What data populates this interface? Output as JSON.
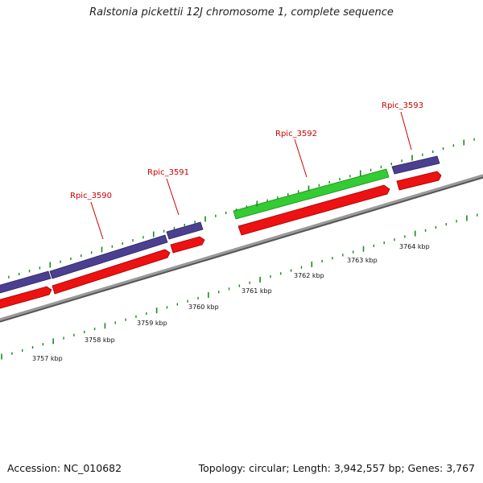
{
  "title": "Ralstonia pickettii 12J chromosome 1, complete sequence",
  "footer": {
    "accession": "Accession: NC_010682",
    "summary": "Topology: circular; Length: 3,942,557 bp; Genes: 3,767"
  },
  "colors": {
    "backbone": "#8a8a8a",
    "gene_purple": "#4b3f8f",
    "gene_green": "#33cc33",
    "cds_red": "#ee1111",
    "tick_green": "#1a8a1a",
    "label_red": "#cc0000"
  },
  "axis_labels": [
    "3757 kbp",
    "3758 kbp",
    "3759 kbp",
    "3760 kbp",
    "3761 kbp",
    "3762 kbp",
    "3763 kbp",
    "3764 kbp"
  ],
  "genes": [
    {
      "name": "Rpic_3590"
    },
    {
      "name": "Rpic_3591"
    },
    {
      "name": "Rpic_3592"
    },
    {
      "name": "Rpic_3593"
    }
  ]
}
